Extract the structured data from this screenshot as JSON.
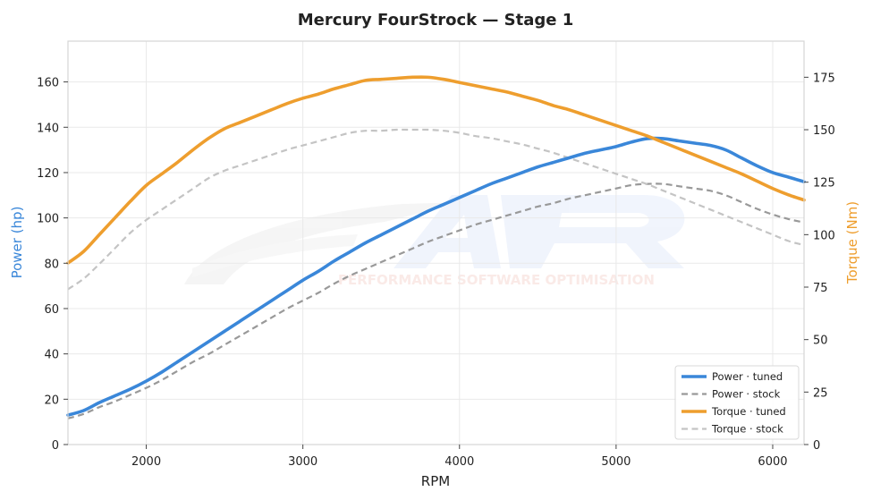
{
  "chart_data": {
    "type": "line",
    "title": "Mercury FourStrock — Stage 1",
    "xlabel": "RPM",
    "ylabel_left": "Power (hp)",
    "ylabel_right": "Torque (Nm)",
    "xlim": [
      1500,
      6200
    ],
    "ylim_left": [
      0,
      178
    ],
    "ylim_right": [
      0,
      192.2
    ],
    "x_ticks": [
      2000,
      3000,
      4000,
      5000,
      6000
    ],
    "y_ticks_left": [
      0,
      20,
      40,
      60,
      80,
      100,
      120,
      140,
      160
    ],
    "y_ticks_right": [
      0,
      25,
      50,
      75,
      100,
      125,
      150,
      175
    ],
    "grid": true,
    "legend_position": "lower-right",
    "watermark": "PERFORMANCE SOFTWARE OPTIMISATION",
    "colors": {
      "power": "#3a87d9",
      "torque": "#ee9e2e",
      "power_stock": "#999999",
      "torque_stock": "#c4c4c4"
    },
    "x": [
      1500,
      1600,
      1700,
      1800,
      1900,
      2000,
      2100,
      2200,
      2300,
      2400,
      2500,
      2600,
      2700,
      2800,
      2900,
      3000,
      3100,
      3200,
      3300,
      3400,
      3500,
      3600,
      3700,
      3800,
      3900,
      4000,
      4100,
      4200,
      4300,
      4400,
      4500,
      4600,
      4700,
      4800,
      4900,
      5000,
      5100,
      5200,
      5300,
      5400,
      5500,
      5600,
      5700,
      5800,
      5900,
      6000,
      6100,
      6200
    ],
    "series": [
      {
        "name": "Power · tuned",
        "axis": "left",
        "style": "solid",
        "color": "#3a87d9",
        "values": [
          13,
          15,
          18.5,
          21.5,
          24.5,
          28,
          32,
          36.5,
          41,
          45.5,
          50,
          54.5,
          59,
          63.5,
          68,
          72.5,
          76.5,
          81,
          85,
          89,
          92.5,
          96,
          99.5,
          103,
          106,
          109,
          112,
          115,
          117.5,
          120,
          122.5,
          124.5,
          126.5,
          128.5,
          130,
          131.5,
          133.5,
          135,
          135,
          134,
          133,
          132,
          130,
          126.5,
          123,
          120,
          118,
          116
        ]
      },
      {
        "name": "Power · stock",
        "axis": "left",
        "style": "dashed",
        "color": "#999999",
        "values": [
          11.5,
          13.5,
          16.5,
          19,
          22,
          25,
          28.5,
          32.5,
          36.5,
          40,
          44,
          48,
          52,
          56,
          60,
          63.5,
          67,
          71,
          74.5,
          77.5,
          80.5,
          83.5,
          86.5,
          89.5,
          92,
          94.5,
          97,
          99,
          101,
          103,
          105,
          106.5,
          108.5,
          110,
          111.5,
          113,
          114.5,
          115,
          115,
          114,
          113,
          112,
          110,
          107,
          104,
          101.5,
          99.5,
          98
        ]
      },
      {
        "name": "Torque · tuned",
        "axis": "right",
        "style": "solid",
        "color": "#ee9e2e",
        "values": [
          86.5,
          92,
          100,
          108,
          116,
          123.5,
          129,
          134.5,
          140.5,
          146,
          150.5,
          153.5,
          156.5,
          159.5,
          162.5,
          165,
          167,
          169.5,
          171.5,
          173.5,
          174,
          174.5,
          175,
          175,
          174,
          172.5,
          171,
          169.5,
          168,
          166,
          164,
          161.5,
          159.5,
          157,
          154.5,
          152,
          149.5,
          147,
          144,
          141,
          138,
          135,
          132,
          129,
          125.5,
          122,
          119,
          116.5
        ]
      },
      {
        "name": "Torque · stock",
        "axis": "right",
        "style": "dashed",
        "color": "#c4c4c4",
        "values": [
          74,
          79,
          86,
          93.5,
          101,
          107,
          112,
          117,
          122,
          127,
          130.5,
          133,
          135.5,
          138,
          140.5,
          142.5,
          144.5,
          146.5,
          148.5,
          149.5,
          149.5,
          150,
          150,
          150,
          149.5,
          148.5,
          147,
          146,
          144.5,
          143,
          141,
          139,
          136.5,
          134,
          131.5,
          129,
          126.5,
          124,
          121,
          118,
          115,
          112,
          109,
          106,
          103,
          100,
          97,
          95
        ]
      }
    ]
  }
}
